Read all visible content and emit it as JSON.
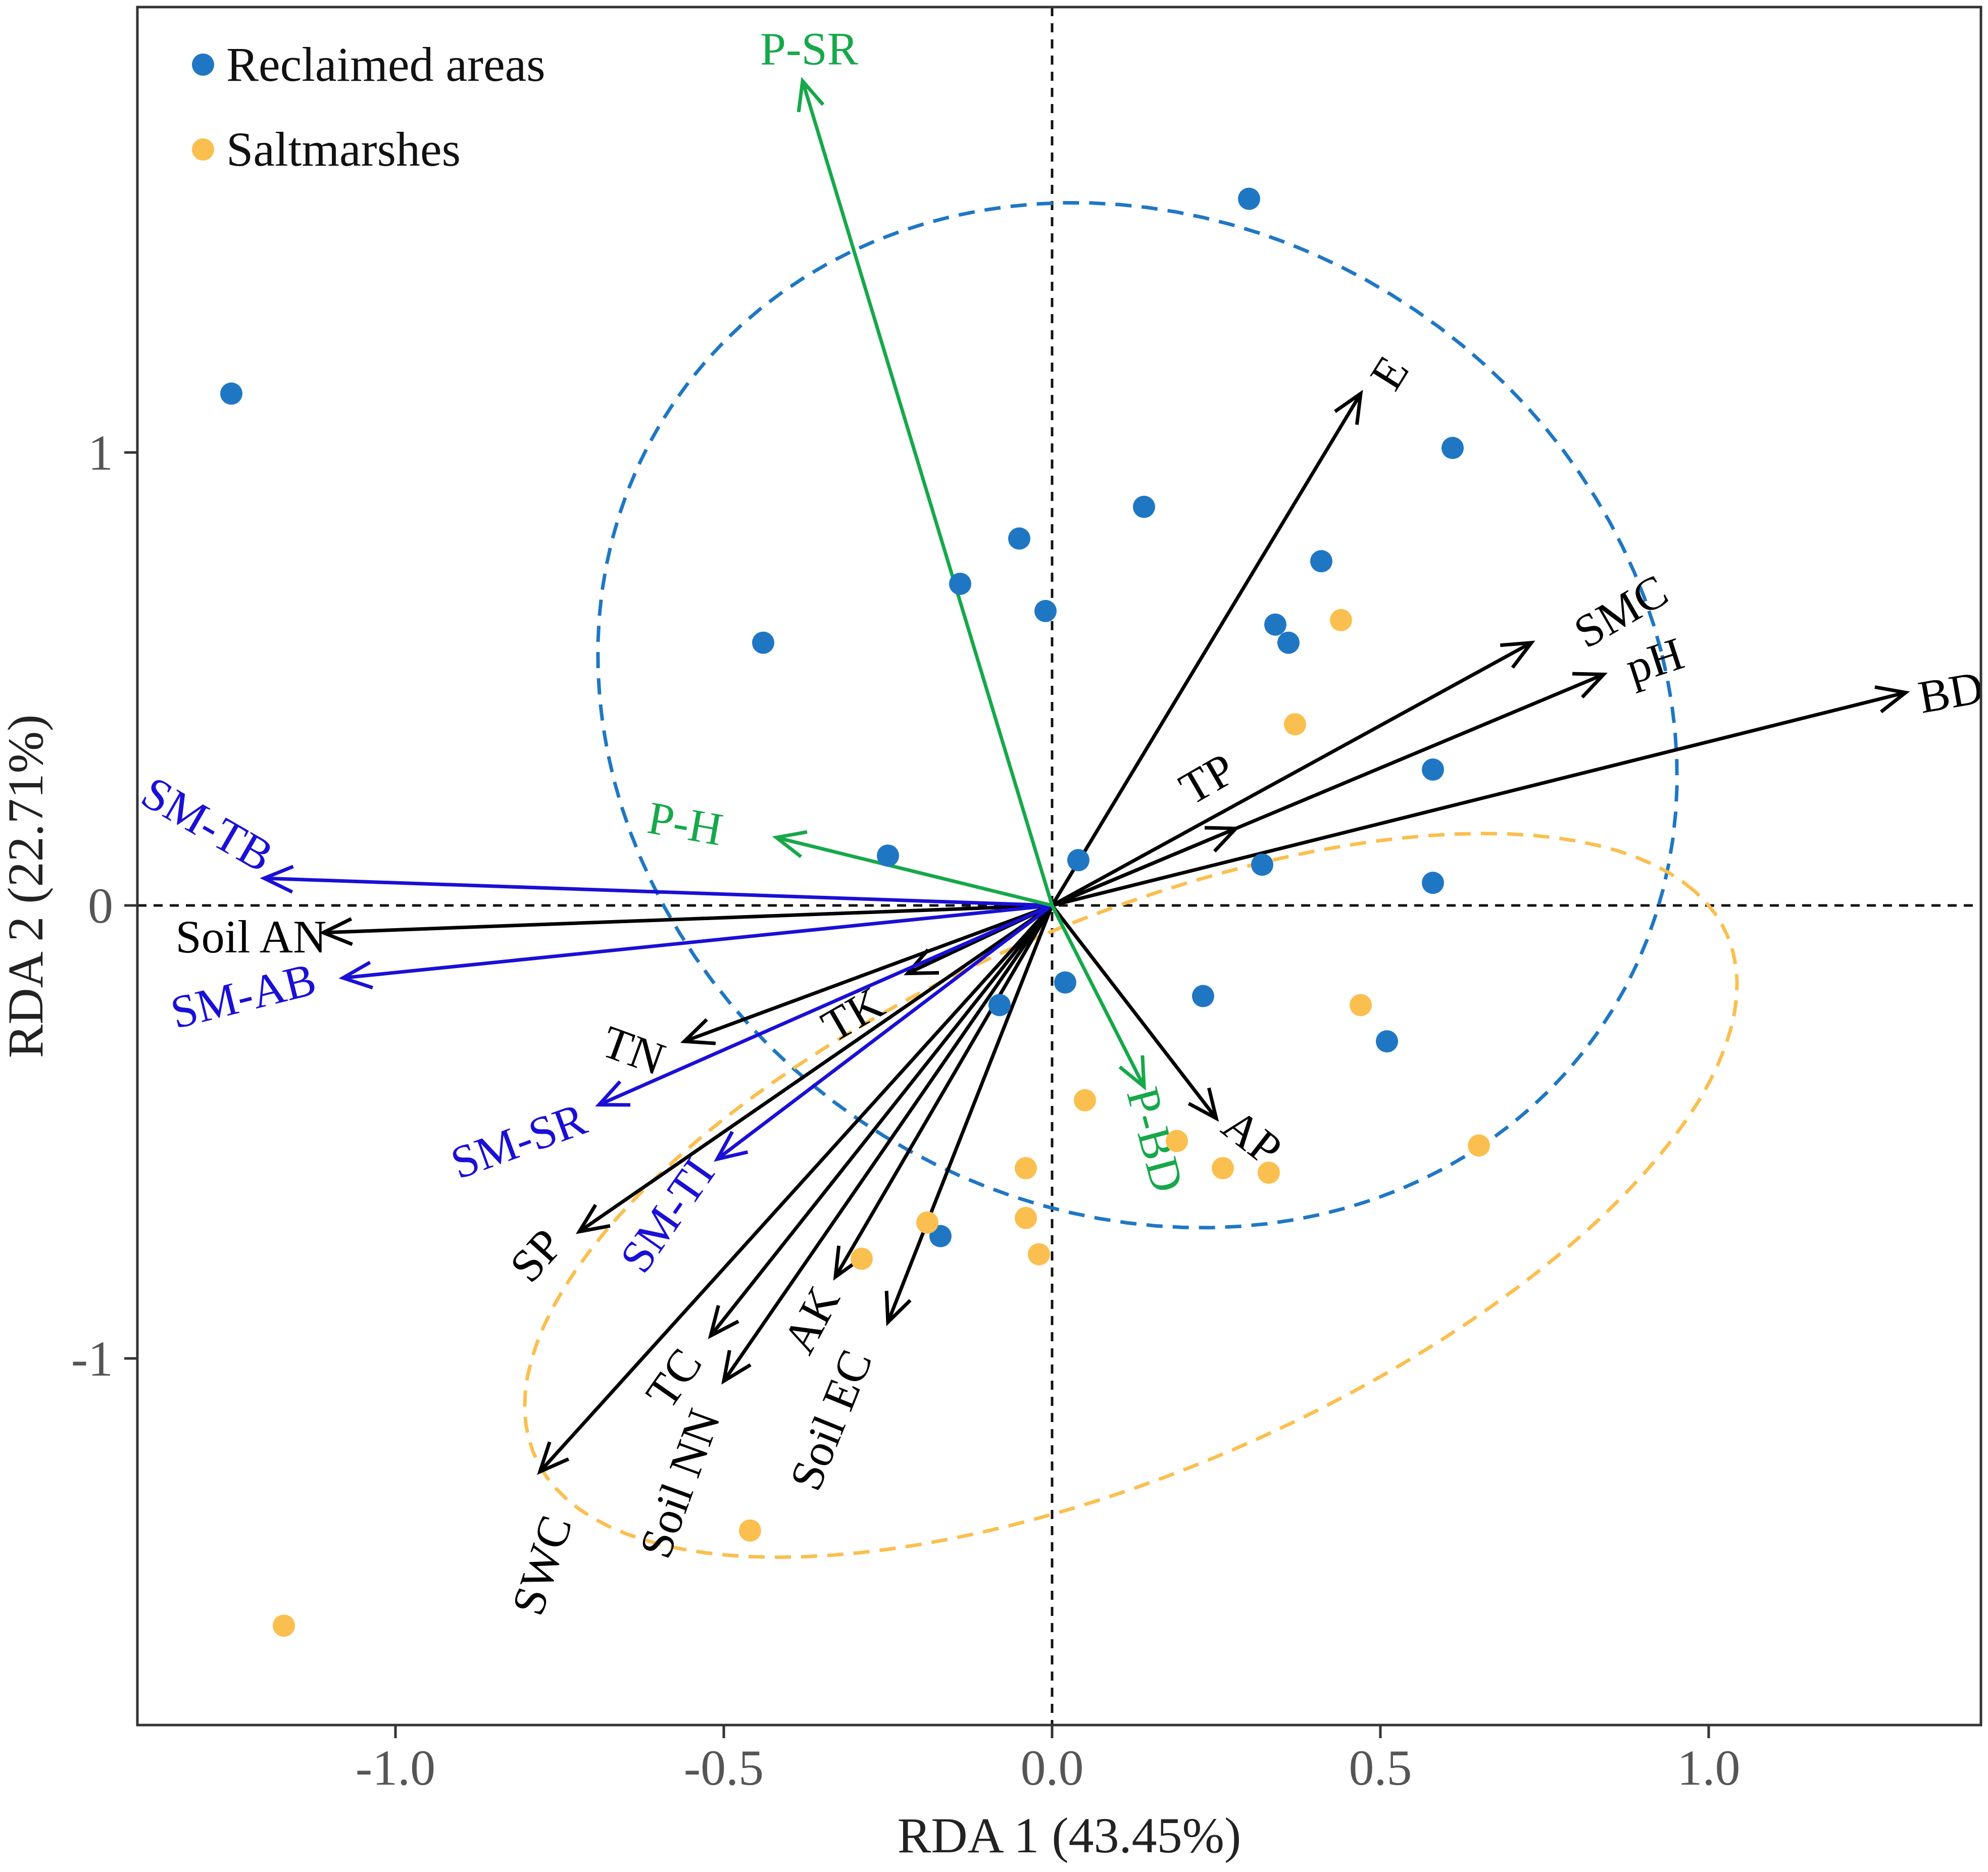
{
  "chart_data": {
    "type": "scatter",
    "title": "",
    "xlabel": "RDA 1 (43.45%)",
    "ylabel": "RDA 2 (22.71%)",
    "xlim": [
      -1.4,
      1.4
    ],
    "ylim": [
      -1.8,
      2.0
    ],
    "x_ticks": [
      -1.0,
      -0.5,
      0.0,
      0.5,
      1.0
    ],
    "x_tick_labels": [
      "-1.0",
      "-0.5",
      "0.0",
      "0.5",
      "1.0"
    ],
    "y_ticks": [
      -1,
      0,
      1
    ],
    "y_tick_labels": [
      "-1",
      "0",
      "1"
    ],
    "grid": false,
    "legend_position": "top-left",
    "colors": {
      "reclaimed": "#1f77c4",
      "saltmarsh": "#fbbf4f",
      "soil_arrow": "#000000",
      "microbe_arrow": "#1a0fd6",
      "plant_arrow": "#16a84a",
      "zero_line": "#111111"
    },
    "series": [
      {
        "name": "Reclaimed areas",
        "color_key": "reclaimed",
        "points": [
          [
            0.3,
            1.56
          ],
          [
            -1.25,
            1.13
          ],
          [
            0.61,
            1.01
          ],
          [
            0.14,
            0.88
          ],
          [
            -0.05,
            0.81
          ],
          [
            0.41,
            0.76
          ],
          [
            -0.14,
            0.71
          ],
          [
            -0.01,
            0.65
          ],
          [
            0.34,
            0.62
          ],
          [
            0.36,
            0.58
          ],
          [
            -0.44,
            0.58
          ],
          [
            0.58,
            0.3
          ],
          [
            0.04,
            0.1
          ],
          [
            -0.25,
            0.11
          ],
          [
            0.32,
            0.09
          ],
          [
            0.58,
            0.05
          ],
          [
            0.02,
            -0.17
          ],
          [
            -0.08,
            -0.22
          ],
          [
            0.23,
            -0.2
          ],
          [
            0.51,
            -0.3
          ],
          [
            -0.17,
            -0.73
          ]
        ]
      },
      {
        "name": "Saltmarshes",
        "color_key": "saltmarsh",
        "points": [
          [
            0.44,
            0.63
          ],
          [
            0.37,
            0.4
          ],
          [
            0.47,
            -0.22
          ],
          [
            0.05,
            -0.43
          ],
          [
            0.19,
            -0.52
          ],
          [
            0.26,
            -0.58
          ],
          [
            0.33,
            -0.59
          ],
          [
            0.65,
            -0.53
          ],
          [
            -0.04,
            -0.58
          ],
          [
            -0.04,
            -0.69
          ],
          [
            -0.02,
            -0.77
          ],
          [
            -0.19,
            -0.7
          ],
          [
            -0.29,
            -0.78
          ],
          [
            -0.46,
            -1.38
          ],
          [
            -1.17,
            -1.59
          ]
        ]
      }
    ],
    "ellipses": [
      {
        "name": "Reclaimed areas ellipse",
        "color_key": "reclaimed",
        "center": [
          0.13,
          0.42
        ],
        "semi_axes": [
          0.81,
          1.14
        ],
        "angle_deg": 10
      },
      {
        "name": "Saltmarshes ellipse",
        "color_key": "saltmarsh",
        "center": [
          0.12,
          -0.64
        ],
        "semi_axes": [
          1.09,
          0.55
        ],
        "angle_deg": 38
      }
    ],
    "arrows": [
      {
        "name": "E",
        "label": "E",
        "group": "soil",
        "end": [
          0.47,
          1.13
        ],
        "label_pos": [
          0.52,
          1.17
        ],
        "label_rot": -58
      },
      {
        "name": "SMC",
        "label": "SMC",
        "group": "soil",
        "end": [
          0.73,
          0.58
        ],
        "label_pos": [
          0.87,
          0.64
        ],
        "label_rot": -30
      },
      {
        "name": "pH",
        "label": "pH",
        "group": "soil",
        "end": [
          0.84,
          0.51
        ],
        "label_pos": [
          0.92,
          0.53
        ],
        "label_rot": -18
      },
      {
        "name": "BD",
        "label": "BD",
        "group": "soil",
        "end": [
          1.3,
          0.47
        ],
        "label_pos": [
          1.37,
          0.46
        ],
        "label_rot": -10
      },
      {
        "name": "TP",
        "label": "TP",
        "group": "soil",
        "end": [
          0.28,
          0.17
        ],
        "label_pos": [
          0.24,
          0.27
        ],
        "label_rot": -30
      },
      {
        "name": "AP",
        "label": "AP",
        "group": "soil",
        "end": [
          0.25,
          -0.47
        ],
        "label_pos": [
          0.3,
          -0.52
        ],
        "label_rot": 38
      },
      {
        "name": "Soil AN",
        "label": "Soil AN",
        "group": "soil",
        "end": [
          -1.11,
          -0.06
        ],
        "label_pos": [
          -1.22,
          -0.08
        ],
        "label_rot": 0
      },
      {
        "name": "TN",
        "label": "TN",
        "group": "soil",
        "end": [
          -0.56,
          -0.3
        ],
        "label_pos": [
          -0.64,
          -0.33
        ],
        "label_rot": 20
      },
      {
        "name": "TK",
        "label": "TK",
        "group": "soil",
        "end": [
          -0.22,
          -0.15
        ],
        "label_pos": [
          -0.3,
          -0.25
        ],
        "label_rot": -30
      },
      {
        "name": "SP",
        "label": "SP",
        "group": "soil",
        "end": [
          -0.72,
          -0.72
        ],
        "label_pos": [
          -0.78,
          -0.78
        ],
        "label_rot": -48
      },
      {
        "name": "SWC",
        "label": "SWC",
        "group": "soil",
        "end": [
          -0.78,
          -1.25
        ],
        "label_pos": [
          -0.77,
          -1.46
        ],
        "label_rot": -72
      },
      {
        "name": "TC",
        "label": "TC",
        "group": "soil",
        "end": [
          -0.52,
          -0.95
        ],
        "label_pos": [
          -0.57,
          -1.05
        ],
        "label_rot": -55
      },
      {
        "name": "Soil NN",
        "label": "Soil NN",
        "group": "soil",
        "end": [
          -0.5,
          -1.05
        ],
        "label_pos": [
          -0.56,
          -1.28
        ],
        "label_rot": -70
      },
      {
        "name": "AK",
        "label": "AK",
        "group": "soil",
        "end": [
          -0.33,
          -0.82
        ],
        "label_pos": [
          -0.36,
          -0.92
        ],
        "label_rot": -62
      },
      {
        "name": "Soil EC",
        "label": "Soil EC",
        "group": "soil",
        "end": [
          -0.25,
          -0.92
        ],
        "label_pos": [
          -0.33,
          -1.14
        ],
        "label_rot": -68
      },
      {
        "name": "SM-TB",
        "label": "SM-TB",
        "group": "microbe",
        "end": [
          -1.2,
          0.06
        ],
        "label_pos": [
          -1.29,
          0.17
        ],
        "label_rot": 30
      },
      {
        "name": "SM-AB",
        "label": "SM-AB",
        "group": "microbe",
        "end": [
          -1.08,
          -0.16
        ],
        "label_pos": [
          -1.23,
          -0.21
        ],
        "label_rot": -14
      },
      {
        "name": "SM-SR",
        "label": "SM-SR",
        "group": "microbe",
        "end": [
          -0.69,
          -0.44
        ],
        "label_pos": [
          -0.81,
          -0.53
        ],
        "label_rot": -20
      },
      {
        "name": "SM-TI",
        "label": "SM-TI",
        "group": "microbe",
        "end": [
          -0.51,
          -0.56
        ],
        "label_pos": [
          -0.58,
          -0.69
        ],
        "label_rot": -55
      },
      {
        "name": "P-SR",
        "label": "P-SR",
        "group": "plant",
        "end": [
          -0.38,
          1.82
        ],
        "label_pos": [
          -0.37,
          1.88
        ],
        "label_rot": 0
      },
      {
        "name": "P-H",
        "label": "P-H",
        "group": "plant",
        "end": [
          -0.42,
          0.15
        ],
        "label_pos": [
          -0.56,
          0.17
        ],
        "label_rot": 10
      },
      {
        "name": "P-BD",
        "label": "P-BD",
        "group": "plant",
        "end": [
          0.14,
          -0.4
        ],
        "label_pos": [
          0.15,
          -0.52
        ],
        "label_rot": 75
      }
    ]
  }
}
